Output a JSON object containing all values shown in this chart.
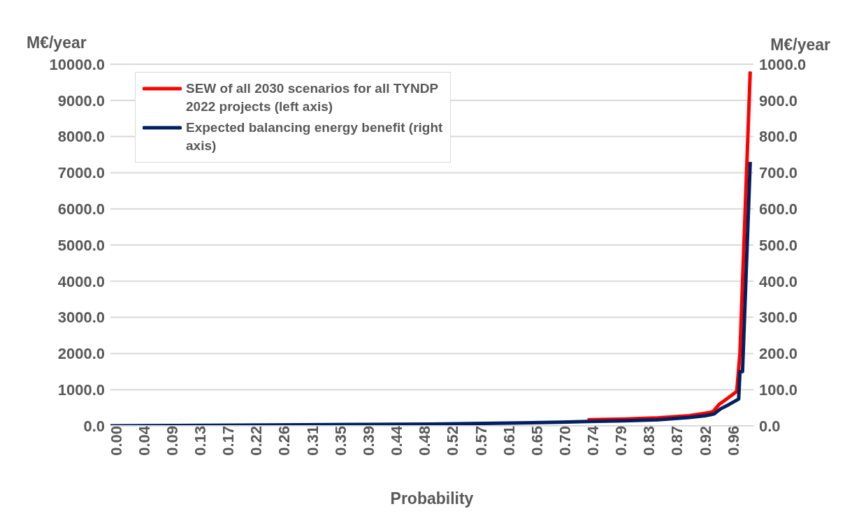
{
  "chart_data": {
    "type": "line",
    "xlabel": "Probability",
    "ylabel": "M€/year",
    "y2label": "M€/year",
    "xlim": [
      0,
      1
    ],
    "xticks": [
      {
        "value": 0,
        "label": "0.00"
      },
      {
        "value": 0.0436,
        "label": "0.04"
      },
      {
        "value": 0.0873,
        "label": "0.09"
      },
      {
        "value": 0.1309,
        "label": "0.13"
      },
      {
        "value": 0.1745,
        "label": "0.17"
      },
      {
        "value": 0.2182,
        "label": "0.22"
      },
      {
        "value": 0.2618,
        "label": "0.26"
      },
      {
        "value": 0.3055,
        "label": "0.31"
      },
      {
        "value": 0.3491,
        "label": "0.35"
      },
      {
        "value": 0.3927,
        "label": "0.39"
      },
      {
        "value": 0.4364,
        "label": "0.44"
      },
      {
        "value": 0.48,
        "label": "0.48"
      },
      {
        "value": 0.5236,
        "label": "0.52"
      },
      {
        "value": 0.5673,
        "label": "0.57"
      },
      {
        "value": 0.6109,
        "label": "0.61"
      },
      {
        "value": 0.6545,
        "label": "0.65"
      },
      {
        "value": 0.6982,
        "label": "0.70"
      },
      {
        "value": 0.7418,
        "label": "0.74"
      },
      {
        "value": 0.7855,
        "label": "0.79"
      },
      {
        "value": 0.8291,
        "label": "0.83"
      },
      {
        "value": 0.8727,
        "label": "0.87"
      },
      {
        "value": 0.9164,
        "label": "0.92"
      },
      {
        "value": 0.96,
        "label": "0.96"
      }
    ],
    "ylim": [
      0,
      10000
    ],
    "yticks": [
      {
        "value": 0,
        "label": "0.0"
      },
      {
        "value": 1000,
        "label": "1000.0"
      },
      {
        "value": 2000,
        "label": "2000.0"
      },
      {
        "value": 3000,
        "label": "3000.0"
      },
      {
        "value": 4000,
        "label": "4000.0"
      },
      {
        "value": 5000,
        "label": "5000.0"
      },
      {
        "value": 6000,
        "label": "6000.0"
      },
      {
        "value": 7000,
        "label": "7000.0"
      },
      {
        "value": 8000,
        "label": "8000.0"
      },
      {
        "value": 9000,
        "label": "9000.0"
      },
      {
        "value": 10000,
        "label": "10000.0"
      }
    ],
    "y2lim": [
      0,
      1000
    ],
    "y2ticks": [
      {
        "value": 0,
        "label": "0.0"
      },
      {
        "value": 100,
        "label": "100.0"
      },
      {
        "value": 200,
        "label": "200.0"
      },
      {
        "value": 300,
        "label": "300.0"
      },
      {
        "value": 400,
        "label": "400.0"
      },
      {
        "value": 500,
        "label": "500.0"
      },
      {
        "value": 600,
        "label": "600.0"
      },
      {
        "value": 700,
        "label": "700.0"
      },
      {
        "value": 800,
        "label": "800.0"
      },
      {
        "value": 900,
        "label": "900.0"
      },
      {
        "value": 1000,
        "label": "1000.0"
      }
    ],
    "grid": "y",
    "legend": "top left",
    "marker": "none",
    "line_style": "solid",
    "series": [
      {
        "name": "SEW of all 2030 scenarios for all TYNDP 2022 projects (left axis)",
        "color": "#ff0000",
        "x": [
          0.742,
          0.8,
          0.852,
          0.9,
          0.925,
          0.937,
          0.947,
          0.958,
          0.974,
          0.979,
          0.995
        ],
        "values": [
          170,
          190,
          220,
          280,
          350,
          390,
          600,
          740,
          950,
          2000,
          9800
        ]
      },
      {
        "name": "Expected balancing energy benefit (right axis)",
        "color": "#002060",
        "axis": "y2",
        "x": [
          0,
          0.1,
          0.2,
          0.3,
          0.4,
          0.5,
          0.6,
          0.7,
          0.742,
          0.8,
          0.852,
          0.9,
          0.925,
          0.939,
          0.949,
          0.962,
          0.977,
          0.979,
          0.983,
          0.995
        ],
        "values": [
          0,
          1,
          2,
          3,
          4,
          5,
          7,
          10,
          12,
          14,
          17,
          23,
          28,
          33,
          47,
          59,
          74,
          150,
          150,
          730
        ]
      }
    ]
  }
}
